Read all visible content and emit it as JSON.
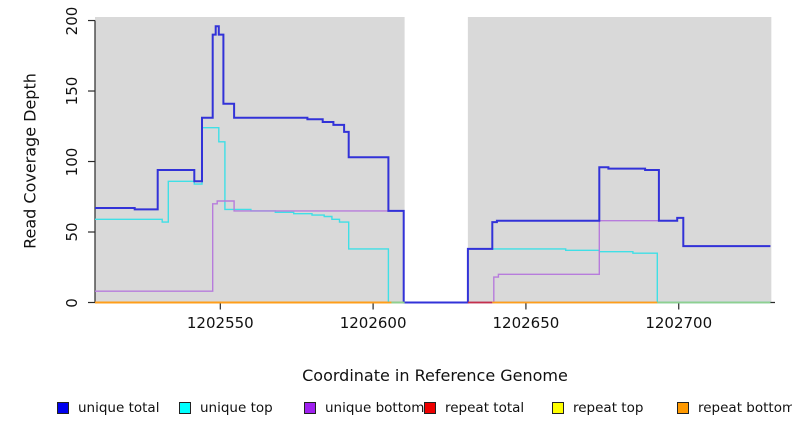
{
  "chart_data": {
    "type": "line",
    "title": "",
    "xlabel": "Coordinate in Reference Genome",
    "ylabel": "Read Coverage Depth",
    "xlim": [
      1202509,
      1202731.5
    ],
    "ylim": [
      0,
      202.5
    ],
    "x_ticks": [
      1202550,
      1202600,
      1202650,
      1202700
    ],
    "y_ticks": [
      0,
      50,
      100,
      150,
      200
    ],
    "grid": "off",
    "legend_position": "bottom",
    "colors": {
      "panel_gray": "#d9d9d9",
      "gap_white": "#ffffff",
      "axis": "#2a2a2a"
    },
    "shaded_regions": [
      {
        "from": 1202509,
        "to": 1202610.3
      },
      {
        "from": 1202631,
        "to": 1202730.3
      }
    ],
    "gap_region": {
      "from": 1202610.3,
      "to": 1202631
    },
    "series": [
      {
        "name": "repeat total",
        "color": "#d02040",
        "width": 1.5,
        "end": 1202610,
        "points": [
          [
            1202509,
            0
          ]
        ]
      },
      {
        "name": "repeat top",
        "color": "#f2f20a",
        "width": 1.5,
        "end": 1202610,
        "points": [
          [
            1202509,
            0
          ]
        ]
      },
      {
        "name": "repeat bottom",
        "color": "#ff9e1a",
        "width": 1.8,
        "end": 1202610,
        "points": [
          [
            1202509,
            0
          ]
        ]
      },
      {
        "name": "unique top",
        "color": "#3fdfe6",
        "width": 1.4,
        "end": 1202730,
        "points": [
          [
            1202509,
            59
          ],
          [
            1202531,
            57
          ],
          [
            1202533,
            86
          ],
          [
            1202541.5,
            84
          ],
          [
            1202544,
            124
          ],
          [
            1202549.5,
            114
          ],
          [
            1202551.5,
            66
          ],
          [
            1202560,
            65
          ],
          [
            1202568,
            64
          ],
          [
            1202574,
            63
          ],
          [
            1202580,
            62
          ],
          [
            1202584,
            61
          ],
          [
            1202586.5,
            59
          ],
          [
            1202589,
            57
          ],
          [
            1202592,
            38
          ],
          [
            1202605,
            0
          ],
          [
            1202631,
            38
          ],
          [
            1202663,
            37
          ],
          [
            1202674,
            36
          ],
          [
            1202685,
            35
          ],
          [
            1202693,
            0
          ]
        ]
      },
      {
        "name": "unique bottom",
        "color": "#b77cdc",
        "width": 1.4,
        "end": 1202730,
        "points": [
          [
            1202509,
            8
          ],
          [
            1202547.5,
            70
          ],
          [
            1202549,
            72
          ],
          [
            1202554.5,
            65
          ],
          [
            1202610,
            0
          ],
          [
            1202639.5,
            18
          ],
          [
            1202641,
            20
          ],
          [
            1202674,
            58
          ],
          [
            1202699.5,
            60
          ],
          [
            1202701.5,
            40
          ]
        ]
      },
      {
        "name": "unique total",
        "color": "#3232d8",
        "width": 2,
        "end": 1202730,
        "points": [
          [
            1202509,
            67
          ],
          [
            1202522,
            66
          ],
          [
            1202529.5,
            94
          ],
          [
            1202541.5,
            86
          ],
          [
            1202544,
            131
          ],
          [
            1202547.5,
            190
          ],
          [
            1202548.5,
            196
          ],
          [
            1202549.5,
            190
          ],
          [
            1202551,
            141
          ],
          [
            1202554.5,
            131
          ],
          [
            1202578.5,
            130
          ],
          [
            1202583.5,
            128
          ],
          [
            1202587,
            126
          ],
          [
            1202590.5,
            121
          ],
          [
            1202592,
            103
          ],
          [
            1202605,
            65
          ],
          [
            1202610,
            0
          ],
          [
            1202631,
            38
          ],
          [
            1202639,
            57
          ],
          [
            1202640.5,
            58
          ],
          [
            1202674,
            96
          ],
          [
            1202677,
            95
          ],
          [
            1202689,
            94
          ],
          [
            1202693.5,
            58
          ],
          [
            1202699.5,
            60
          ],
          [
            1202701.5,
            40
          ]
        ]
      }
    ],
    "baseline_segments": [
      {
        "from": 1202509,
        "to": 1202606,
        "color": "#ff9e1a"
      },
      {
        "from": 1202606,
        "to": 1202610.3,
        "color": "#8fd08f"
      },
      {
        "from": 1202631,
        "to": 1202639,
        "color": "#c5304c"
      },
      {
        "from": 1202639,
        "to": 1202693,
        "color": "#ff9e1a"
      },
      {
        "from": 1202693,
        "to": 1202730,
        "color": "#8fd08f"
      }
    ]
  },
  "legend": {
    "items": [
      {
        "label": "unique total",
        "color": "#0000ee"
      },
      {
        "label": "unique top",
        "color": "#00ffff"
      },
      {
        "label": "unique bottom",
        "color": "#a020f0"
      },
      {
        "label": "repeat total",
        "color": "#ee0000"
      },
      {
        "label": "repeat top",
        "color": "#ffff00"
      },
      {
        "label": "repeat bottom",
        "color": "#ff9900"
      }
    ]
  }
}
